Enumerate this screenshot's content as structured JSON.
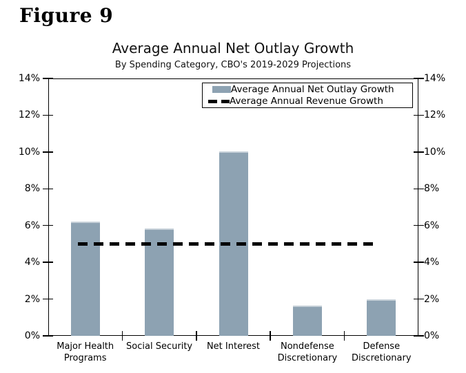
{
  "figure_label": "Figure 9",
  "chart_data": {
    "type": "bar",
    "title": "Average Annual Net Outlay Growth",
    "subtitle": "By Spending Category, CBO's 2019-2029 Projections",
    "categories": [
      "Major Health Programs",
      "Social Security",
      "Net Interest",
      "Nondefense Discretionary",
      "Defense Discretionary"
    ],
    "series": [
      {
        "name": "Average Annual Net Outlay Growth",
        "type": "bar",
        "color": "#8DA2B2",
        "values": [
          6.2,
          5.85,
          10.05,
          1.65,
          2.0
        ]
      },
      {
        "name": "Average Annual Revenue Growth",
        "type": "line",
        "style": "dashed",
        "color": "#000000",
        "value": 5.0
      }
    ],
    "ylim": [
      0,
      14
    ],
    "y_ticks": [
      0,
      2,
      4,
      6,
      8,
      10,
      12,
      14
    ],
    "y_tick_suffix": "%",
    "y_axis_sides": "both",
    "legend_position": "top-right inside plot",
    "grid": false
  }
}
